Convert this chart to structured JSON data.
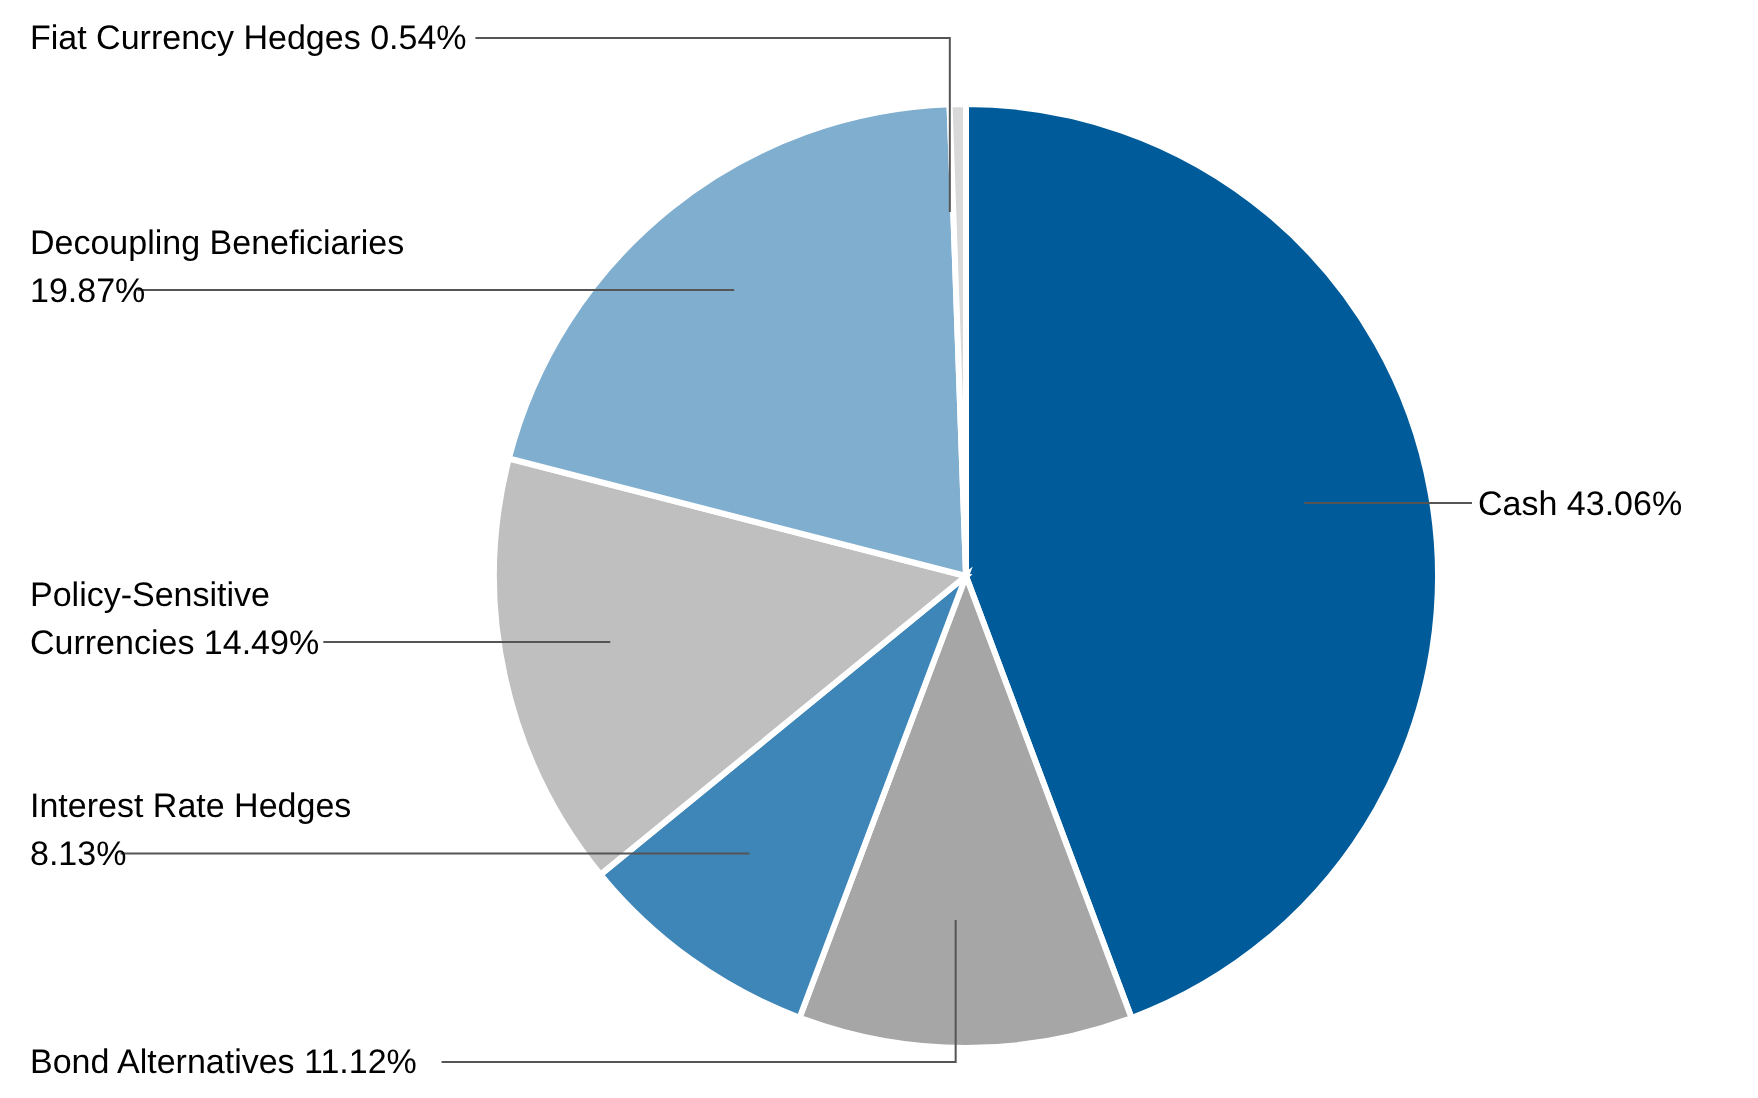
{
  "chart_data": {
    "type": "pie",
    "categories": [
      "Cash",
      "Bond Alternatives",
      "Interest Rate Hedges",
      "Policy-Sensitive Currencies",
      "Decoupling Beneficiaries",
      "Fiat Currency Hedges"
    ],
    "values": [
      43.06,
      11.12,
      8.13,
      14.49,
      19.87,
      0.54
    ],
    "value_labels": [
      "43.06%",
      "11.12%",
      "8.13%",
      "14.49%",
      "19.87%",
      "0.54%"
    ],
    "colors": [
      "#005b9a",
      "#a6a6a6",
      "#3f86b8",
      "#bfbfbf",
      "#80aecf",
      "#d9d9d9"
    ]
  }
}
